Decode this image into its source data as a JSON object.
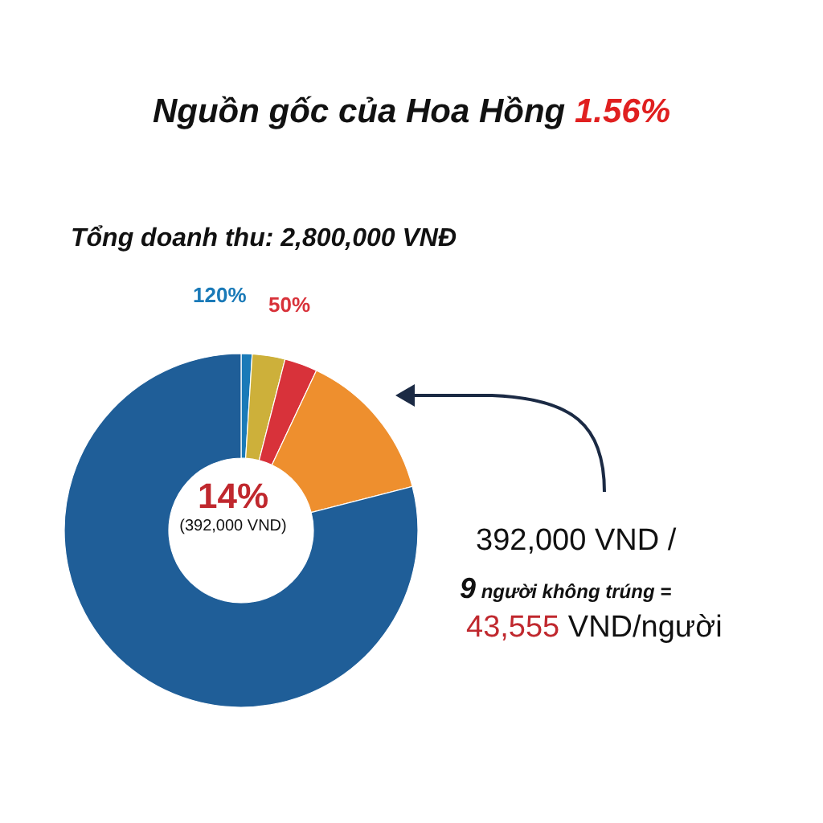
{
  "chart_data": {
    "type": "donut",
    "title": "Nguồn gốc của Hoa Hồng 1.56%",
    "subtitle": "Tổng doanh thu: 2,800,000 VNĐ",
    "categories": [
      null,
      null,
      null,
      null,
      null
    ],
    "values": [
      1,
      3,
      3,
      14,
      79
    ],
    "colors": [
      "#1a7ab8",
      "#cdb03a",
      "#d8323a",
      "#ee8f2e",
      "#1f5e98"
    ],
    "annotations": [
      "120%",
      "50%",
      "14%",
      "(392,000 VND)",
      "392,000 VND /",
      "9 người không trúng =",
      "43,555 VND/người"
    ]
  }
}
